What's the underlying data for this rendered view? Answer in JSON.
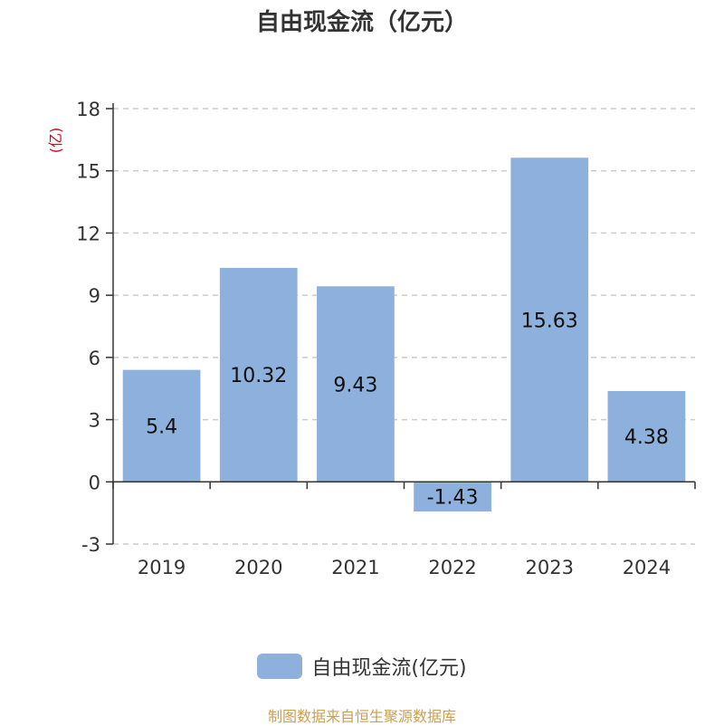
{
  "title": "自由现金流（亿元）",
  "unit_label": "(亿)",
  "legend_label": "自由现金流(亿元)",
  "footer": "制图数据来自恒生聚源数据库",
  "colors": {
    "bar": "#8eb0dc",
    "title": "#333333",
    "unit": "#d9001b",
    "footer": "#c8a050",
    "grid": "#cccccc",
    "axis": "#333333",
    "text": "#333333"
  },
  "chart_data": {
    "type": "bar",
    "categories": [
      "2019",
      "2020",
      "2021",
      "2022",
      "2023",
      "2024"
    ],
    "series": [
      {
        "name": "自由现金流(亿元)",
        "values": [
          5.4,
          10.32,
          9.43,
          -1.43,
          15.63,
          4.38
        ]
      }
    ],
    "data_labels": [
      "5.4",
      "10.32",
      "9.43",
      "-1.43",
      "15.63",
      "4.38"
    ],
    "ylim": [
      -3,
      18
    ],
    "yticks": [
      18,
      15,
      12,
      9,
      6,
      3,
      0,
      -3
    ],
    "grid": true,
    "legend_position": "bottom"
  }
}
